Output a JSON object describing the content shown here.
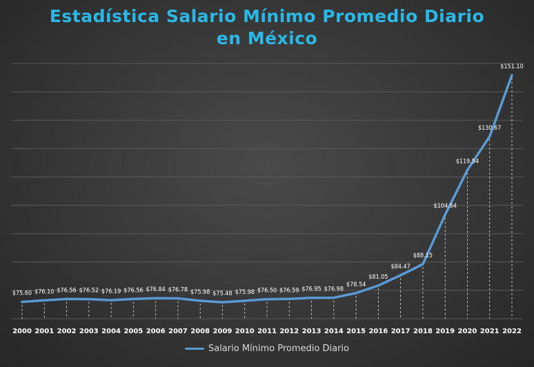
{
  "chart_data": {
    "type": "line",
    "title_line1": "Estadística Salario Mínimo Promedio Diario",
    "title_line2": "en México",
    "categories": [
      "2000",
      "2001",
      "2002",
      "2003",
      "2004",
      "2005",
      "2006",
      "2007",
      "2008",
      "2009",
      "2010",
      "2011",
      "2012",
      "2013",
      "2014",
      "2015",
      "2016",
      "2017",
      "2018",
      "2019",
      "2020",
      "2021",
      "2022"
    ],
    "series": [
      {
        "name": "Salario Mínimo Promedio Diario",
        "color": "#5b9bd5",
        "values": [
          75.6,
          76.1,
          76.56,
          76.52,
          76.19,
          76.56,
          76.84,
          76.78,
          75.98,
          75.48,
          75.98,
          76.5,
          76.59,
          76.95,
          76.98,
          78.54,
          81.05,
          84.47,
          88.15,
          104.64,
          119.54,
          130.67,
          151.1
        ],
        "labels": [
          "$75.60",
          "$76.10",
          "$76.56",
          "$76.52",
          "$76.19",
          "$76.56",
          "$76.84",
          "$76.78",
          "$75.98",
          "$75.48",
          "$75.98",
          "$76.50",
          "$76.59",
          "$76.95",
          "$76.98",
          "$78.54",
          "$81.05",
          "$84.47",
          "$88.15",
          "$104.64",
          "$119.54",
          "$130.67",
          "$151.10"
        ]
      }
    ],
    "ylim": [
      70,
      155
    ],
    "grid": true,
    "legend_position": "bottom",
    "colors": {
      "title": "#2bb8e6",
      "line": "#5b9bd5",
      "text": "#ffffff"
    }
  }
}
